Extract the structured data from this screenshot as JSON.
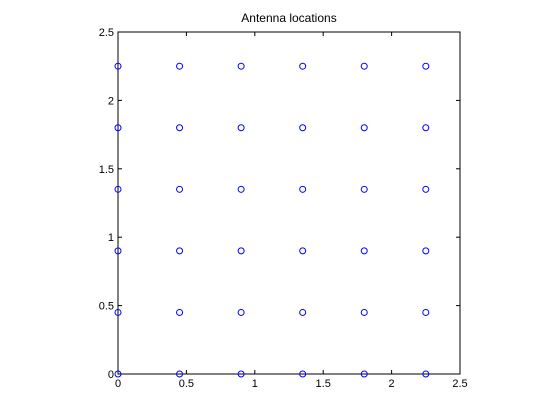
{
  "chart_data": {
    "type": "scatter",
    "title": "Antenna locations",
    "xlabel": "",
    "ylabel": "",
    "xlim": [
      0,
      2.5
    ],
    "ylim": [
      0,
      2.5
    ],
    "xticks": [
      0,
      0.5,
      1,
      1.5,
      2,
      2.5
    ],
    "xtick_labels": [
      "0",
      "0.5",
      "1",
      "1.5",
      "2",
      "2.5"
    ],
    "yticks": [
      0,
      0.5,
      1,
      1.5,
      2,
      2.5
    ],
    "ytick_labels": [
      "0",
      "0.5",
      "1",
      "1.5",
      "2",
      "2.5"
    ],
    "grid": false,
    "legend": "none",
    "marker": "circle",
    "marker_color": "#0000ff",
    "x_positions": [
      0,
      0.45,
      0.9,
      1.35,
      1.8,
      2.25
    ],
    "y_positions": [
      0,
      0.45,
      0.9,
      1.35,
      1.8,
      2.25
    ],
    "points": [
      [
        0,
        0
      ],
      [
        0.45,
        0
      ],
      [
        0.9,
        0
      ],
      [
        1.35,
        0
      ],
      [
        1.8,
        0
      ],
      [
        2.25,
        0
      ],
      [
        0,
        0.45
      ],
      [
        0.45,
        0.45
      ],
      [
        0.9,
        0.45
      ],
      [
        1.35,
        0.45
      ],
      [
        1.8,
        0.45
      ],
      [
        2.25,
        0.45
      ],
      [
        0,
        0.9
      ],
      [
        0.45,
        0.9
      ],
      [
        0.9,
        0.9
      ],
      [
        1.35,
        0.9
      ],
      [
        1.8,
        0.9
      ],
      [
        2.25,
        0.9
      ],
      [
        0,
        1.35
      ],
      [
        0.45,
        1.35
      ],
      [
        0.9,
        1.35
      ],
      [
        1.35,
        1.35
      ],
      [
        1.8,
        1.35
      ],
      [
        2.25,
        1.35
      ],
      [
        0,
        1.8
      ],
      [
        0.45,
        1.8
      ],
      [
        0.9,
        1.8
      ],
      [
        1.35,
        1.8
      ],
      [
        1.8,
        1.8
      ],
      [
        2.25,
        1.8
      ],
      [
        0,
        2.25
      ],
      [
        0.45,
        2.25
      ],
      [
        0.9,
        2.25
      ],
      [
        1.35,
        2.25
      ],
      [
        1.8,
        2.25
      ],
      [
        2.25,
        2.25
      ]
    ]
  }
}
